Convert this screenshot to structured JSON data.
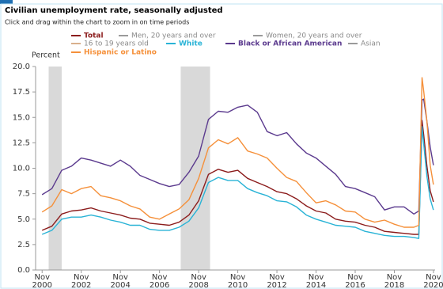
{
  "chart_data": {
    "type": "line",
    "title": "Civilian unemployment rate, seasonally adjusted",
    "subtitle": "Click and drag within the chart to zoom in on time periods",
    "ylabel": "Percent",
    "x": [
      "2000-11",
      "2001-05",
      "2001-11",
      "2002-05",
      "2002-11",
      "2003-05",
      "2003-11",
      "2004-05",
      "2004-11",
      "2005-05",
      "2005-11",
      "2006-05",
      "2006-11",
      "2007-05",
      "2007-11",
      "2008-05",
      "2008-11",
      "2009-05",
      "2009-11",
      "2010-05",
      "2010-11",
      "2011-05",
      "2011-11",
      "2012-05",
      "2012-11",
      "2013-05",
      "2013-11",
      "2014-05",
      "2014-11",
      "2015-05",
      "2015-11",
      "2016-05",
      "2016-11",
      "2017-05",
      "2017-11",
      "2018-05",
      "2018-11",
      "2019-05",
      "2019-11",
      "2020-02",
      "2020-04",
      "2020-05",
      "2020-07",
      "2020-09",
      "2020-11"
    ],
    "xlim": [
      "2000-07",
      "2020-12"
    ],
    "xticks": [
      {
        "value": "2000-11",
        "label": "Nov 2000"
      },
      {
        "value": "2002-11",
        "label": "Nov 2002"
      },
      {
        "value": "2004-11",
        "label": "Nov 2004"
      },
      {
        "value": "2006-11",
        "label": "Nov 2006"
      },
      {
        "value": "2008-11",
        "label": "Nov 2008"
      },
      {
        "value": "2010-11",
        "label": "Nov 2010"
      },
      {
        "value": "2012-11",
        "label": "Nov 2012"
      },
      {
        "value": "2014-11",
        "label": "Nov 2014"
      },
      {
        "value": "2016-11",
        "label": "Nov 2016"
      },
      {
        "value": "2018-11",
        "label": "Nov 2018"
      },
      {
        "value": "2020-11",
        "label": "Nov 2020"
      }
    ],
    "ylim": [
      0,
      20
    ],
    "yticks": [
      {
        "value": 0,
        "label": "0.0"
      },
      2.5,
      {
        "value": 5,
        "label": "5.0"
      },
      7.5,
      {
        "value": 10,
        "label": "10.0"
      },
      12.5,
      {
        "value": 15,
        "label": "15.0"
      },
      17.5,
      {
        "value": 20,
        "label": "20.0"
      }
    ],
    "recessions": [
      [
        "2001-03",
        "2001-11"
      ],
      [
        "2007-12",
        "2009-06"
      ]
    ],
    "recession_color": "#d9d9d9",
    "series": [
      {
        "name": "Total",
        "color": "#8b1c1c",
        "visible": true,
        "values": [
          3.9,
          4.3,
          5.5,
          5.8,
          5.9,
          6.1,
          5.8,
          5.6,
          5.4,
          5.1,
          5.0,
          4.6,
          4.5,
          4.4,
          4.7,
          5.4,
          6.8,
          9.4,
          9.9,
          9.6,
          9.8,
          9.0,
          8.6,
          8.2,
          7.7,
          7.5,
          7.0,
          6.3,
          5.8,
          5.6,
          5.0,
          4.8,
          4.7,
          4.4,
          4.2,
          3.8,
          3.7,
          3.6,
          3.5,
          3.5,
          14.7,
          13.3,
          10.2,
          7.8,
          6.7
        ]
      },
      {
        "name": "Men, 20 years and over",
        "color": "#9a9a9a",
        "visible": false
      },
      {
        "name": "Women, 20 years and over",
        "color": "#9a9a9a",
        "visible": false
      },
      {
        "name": "16 to 19 years old",
        "color": "#d9b08c",
        "visible": false
      },
      {
        "name": "White",
        "color": "#29b3d6",
        "visible": true,
        "values": [
          3.5,
          3.9,
          5.0,
          5.2,
          5.2,
          5.4,
          5.2,
          4.9,
          4.7,
          4.4,
          4.4,
          4.0,
          3.9,
          3.9,
          4.2,
          4.8,
          6.1,
          8.6,
          9.1,
          8.8,
          8.8,
          8.0,
          7.6,
          7.3,
          6.8,
          6.7,
          6.2,
          5.4,
          5.0,
          4.7,
          4.4,
          4.3,
          4.2,
          3.8,
          3.6,
          3.4,
          3.3,
          3.3,
          3.2,
          3.1,
          14.1,
          12.4,
          9.2,
          7.0,
          5.9
        ]
      },
      {
        "name": "Black or African American",
        "color": "#5b3a8e",
        "visible": true,
        "values": [
          7.4,
          8.0,
          9.8,
          10.2,
          11.0,
          10.8,
          10.5,
          10.2,
          10.8,
          10.2,
          9.3,
          8.9,
          8.5,
          8.2,
          8.4,
          9.6,
          11.2,
          14.8,
          15.6,
          15.5,
          16.0,
          16.2,
          15.5,
          13.6,
          13.2,
          13.5,
          12.4,
          11.5,
          11.0,
          10.2,
          9.4,
          8.2,
          8.0,
          7.6,
          7.2,
          5.9,
          6.2,
          6.2,
          5.5,
          5.8,
          16.7,
          16.8,
          14.6,
          12.1,
          10.3
        ]
      },
      {
        "name": "Asian",
        "color": "#9a9a9a",
        "visible": false
      },
      {
        "name": "Hispanic or Latino",
        "color": "#f5903a",
        "visible": true,
        "values": [
          5.7,
          6.3,
          7.9,
          7.5,
          8.0,
          8.2,
          7.3,
          7.1,
          6.8,
          6.3,
          6.0,
          5.2,
          5.0,
          5.5,
          6.0,
          6.9,
          9.0,
          12.0,
          12.8,
          12.4,
          13.0,
          11.7,
          11.4,
          11.0,
          10.0,
          9.1,
          8.7,
          7.6,
          6.6,
          6.8,
          6.4,
          5.8,
          5.7,
          5.0,
          4.7,
          4.9,
          4.5,
          4.2,
          4.2,
          4.4,
          18.9,
          17.6,
          14.6,
          10.3,
          8.4
        ]
      }
    ]
  }
}
